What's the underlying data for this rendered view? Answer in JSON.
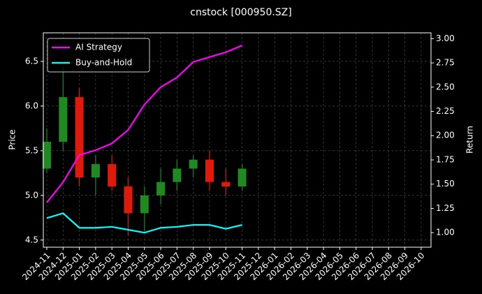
{
  "chart_data": {
    "type": "candlestick",
    "title": "cnstock [000950.SZ]",
    "ylabel": "Price",
    "y2label": "Return",
    "x": [
      "2024-11",
      "2024-12",
      "2025-01",
      "2025-02",
      "2025-03",
      "2025-04",
      "2025-05",
      "2025-06",
      "2025-07",
      "2025-08",
      "2025-09",
      "2025-10",
      "2025-11"
    ],
    "open": [
      5.3,
      5.6,
      6.1,
      5.2,
      5.35,
      5.1,
      4.8,
      5.0,
      5.15,
      5.3,
      5.4,
      5.15,
      5.1
    ],
    "high": [
      5.75,
      6.45,
      6.2,
      5.45,
      5.45,
      5.2,
      5.1,
      5.3,
      5.4,
      5.45,
      5.5,
      5.3,
      5.35
    ],
    "low": [
      5.25,
      5.5,
      5.1,
      5.0,
      5.05,
      4.55,
      4.6,
      4.9,
      5.05,
      5.2,
      5.05,
      5.0,
      5.05
    ],
    "close": [
      5.6,
      6.1,
      5.2,
      5.35,
      5.1,
      4.8,
      5.0,
      5.15,
      5.3,
      5.4,
      5.15,
      5.1,
      5.3
    ],
    "up_color": "#1f8a1f",
    "down_color": "#e01a0a",
    "series": [
      {
        "name": "AI Strategy",
        "color": "#ff00ff",
        "axis": "y2",
        "values": [
          1.31,
          1.52,
          1.8,
          1.85,
          1.92,
          2.06,
          2.32,
          2.5,
          2.6,
          2.76,
          2.81,
          2.86,
          2.93
        ]
      },
      {
        "name": "Buy-and-Hold",
        "color": "#00ffff",
        "axis": "y2",
        "values": [
          1.15,
          1.2,
          1.05,
          1.05,
          1.06,
          1.03,
          1.0,
          1.05,
          1.06,
          1.08,
          1.08,
          1.04,
          1.08
        ]
      }
    ],
    "xticks": [
      "2024-11",
      "2024-12",
      "2025-01",
      "2025-02",
      "2025-03",
      "2025-04",
      "2025-05",
      "2025-06",
      "2025-07",
      "2025-08",
      "2025-09",
      "2025-10",
      "2025-11",
      "2025-12",
      "2026-01",
      "2026-02",
      "2026-03",
      "2026-04",
      "2026-05",
      "2026-06",
      "2026-07",
      "2026-08",
      "2026-09",
      "2026-10"
    ],
    "ylim": [
      4.42,
      6.82
    ],
    "yticks": [
      4.5,
      {
        "value": 5.0,
        "label": "5.0"
      },
      5.5,
      {
        "value": 6.0,
        "label": "6.0"
      },
      6.5
    ],
    "y2lim": [
      0.85,
      3.06
    ],
    "y2ticks": [
      {
        "value": 1.0,
        "label": "1.00"
      },
      1.25,
      {
        "value": 1.5,
        "label": "1.50"
      },
      1.75,
      {
        "value": 2.0,
        "label": "2.00"
      },
      2.25,
      {
        "value": 2.5,
        "label": "2.50"
      },
      2.75,
      {
        "value": 3.0,
        "label": "3.00"
      }
    ],
    "grid": true,
    "legend": "upper left"
  }
}
